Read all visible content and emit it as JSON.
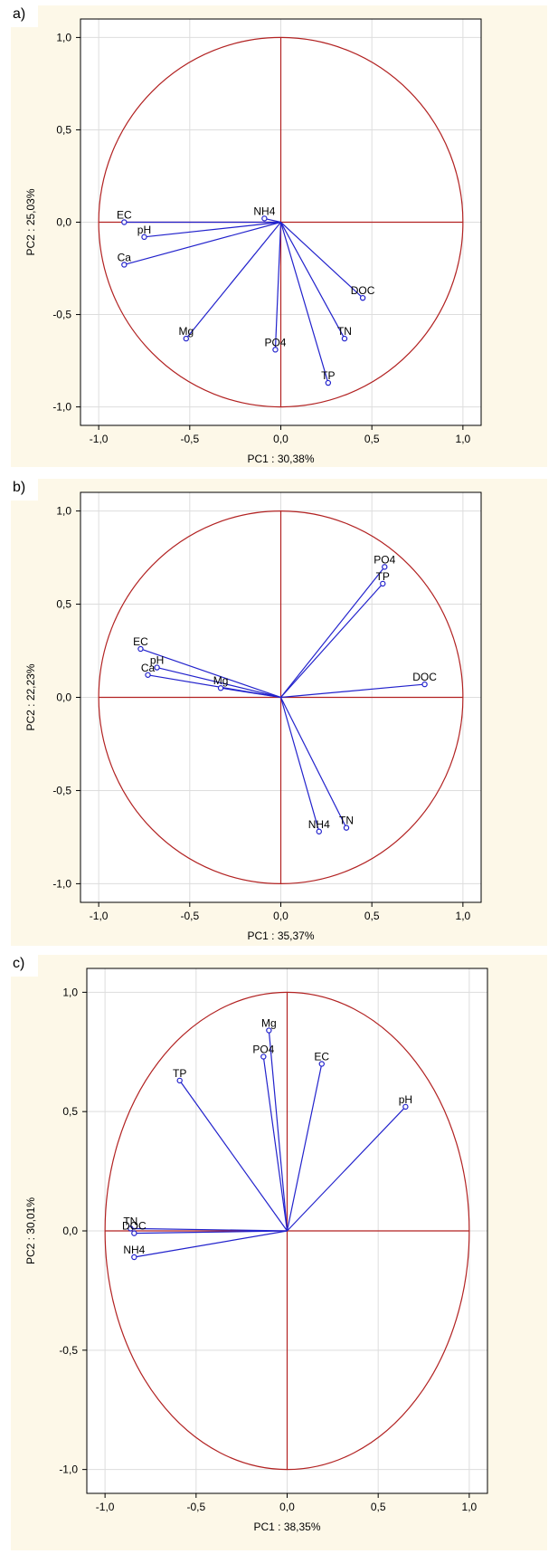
{
  "colors": {
    "background": "#fdf8e8",
    "axes": "#b22222",
    "vectors": "#2222cc",
    "frame": "#000000"
  },
  "chart_data": [
    {
      "panel_label": "a)",
      "type": "scatter",
      "xlabel": "PC1 : 30,38%",
      "ylabel": "PC2 : 25,03%",
      "xlim": [
        -1.1,
        1.1
      ],
      "ylim": [
        -1.1,
        1.1
      ],
      "xticks": [
        "-1,0",
        "-0,5",
        "0,0",
        "0,5",
        "1,0"
      ],
      "yticks": [
        "1,0",
        "0,5",
        "0,0",
        "-0,5",
        "-1,0"
      ],
      "grid": true,
      "points": [
        {
          "label": "EC",
          "x": -0.86,
          "y": 0.0
        },
        {
          "label": "pH",
          "x": -0.75,
          "y": -0.08
        },
        {
          "label": "Ca",
          "x": -0.86,
          "y": -0.23
        },
        {
          "label": "NH4",
          "x": -0.09,
          "y": 0.02
        },
        {
          "label": "Mg",
          "x": -0.52,
          "y": -0.63
        },
        {
          "label": "PO4",
          "x": -0.03,
          "y": -0.69
        },
        {
          "label": "DOC",
          "x": 0.45,
          "y": -0.41
        },
        {
          "label": "TN",
          "x": 0.35,
          "y": -0.63
        },
        {
          "label": "TP",
          "x": 0.26,
          "y": -0.87
        }
      ]
    },
    {
      "panel_label": "b)",
      "type": "scatter",
      "xlabel": "PC1 : 35,37%",
      "ylabel": "PC2 : 22,23%",
      "xlim": [
        -1.1,
        1.1
      ],
      "ylim": [
        -1.1,
        1.1
      ],
      "xticks": [
        "-1,0",
        "-0,5",
        "0,0",
        "0,5",
        "1,0"
      ],
      "yticks": [
        "1,0",
        "0,5",
        "0,0",
        "-0,5",
        "-1,0"
      ],
      "grid": true,
      "points": [
        {
          "label": "EC",
          "x": -0.77,
          "y": 0.26
        },
        {
          "label": "pH",
          "x": -0.68,
          "y": 0.16
        },
        {
          "label": "Ca",
          "x": -0.73,
          "y": 0.12
        },
        {
          "label": "Mg",
          "x": -0.33,
          "y": 0.05
        },
        {
          "label": "PO4",
          "x": 0.57,
          "y": 0.7
        },
        {
          "label": "TP",
          "x": 0.56,
          "y": 0.61
        },
        {
          "label": "DOC",
          "x": 0.79,
          "y": 0.07
        },
        {
          "label": "NH4",
          "x": 0.21,
          "y": -0.72
        },
        {
          "label": "TN",
          "x": 0.36,
          "y": -0.7
        }
      ]
    },
    {
      "panel_label": "c)",
      "type": "scatter",
      "xlabel": "PC1 : 38,35%",
      "ylabel": "PC2 : 30,01%",
      "xlim": [
        -1.1,
        1.1
      ],
      "ylim": [
        -1.1,
        1.1
      ],
      "xticks": [
        "-1,0",
        "-0,5",
        "0,0",
        "0,5",
        "1,0"
      ],
      "yticks": [
        "1,0",
        "0,5",
        "0,0",
        "-0,5",
        "-1,0"
      ],
      "grid": true,
      "points": [
        {
          "label": "Mg",
          "x": -0.1,
          "y": 0.84
        },
        {
          "label": "PO4",
          "x": -0.13,
          "y": 0.73
        },
        {
          "label": "EC",
          "x": 0.19,
          "y": 0.7
        },
        {
          "label": "TP",
          "x": -0.59,
          "y": 0.63
        },
        {
          "label": "pH",
          "x": 0.65,
          "y": 0.52
        },
        {
          "label": "TN",
          "x": -0.86,
          "y": 0.01
        },
        {
          "label": "DOC",
          "x": -0.84,
          "y": -0.01
        },
        {
          "label": "NH4",
          "x": -0.84,
          "y": -0.11
        }
      ]
    }
  ]
}
